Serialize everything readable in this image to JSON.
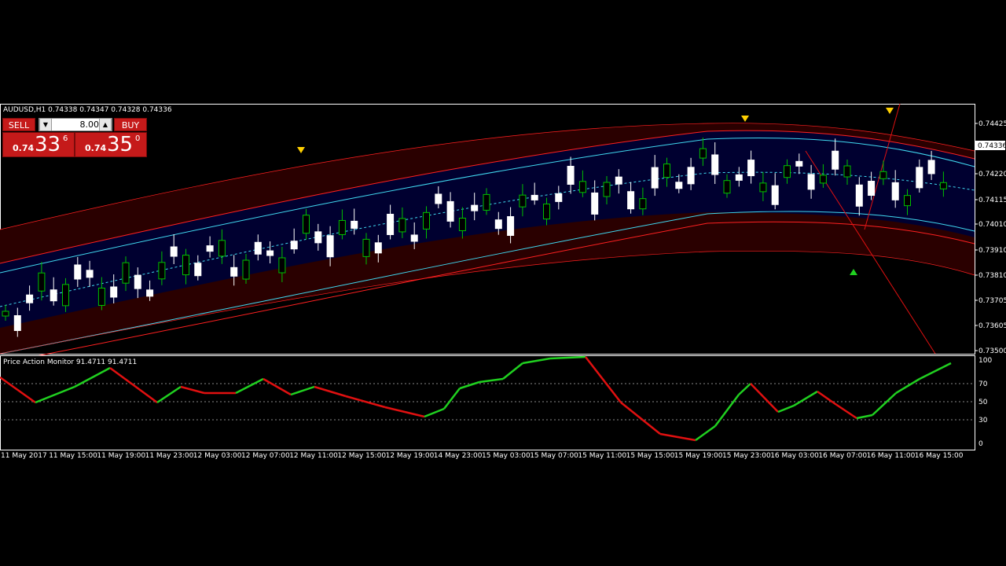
{
  "chart": {
    "symbol_line": "AUDUSD,H1  0.74338 0.74347 0.74328 0.74336",
    "indicator_label": "Price Action Monitor 91.4711 91.4711",
    "price_ticks": [
      "0.74425",
      "0.74336",
      "0.74220",
      "0.74115",
      "0.74010",
      "0.73910",
      "0.73810",
      "0.73705",
      "0.73605",
      "0.73500"
    ],
    "current_price": "0.74336",
    "indicator_ticks": [
      "100",
      "70",
      "50",
      "30",
      "0"
    ],
    "time_labels": [
      "11 May 2017",
      "11 May 15:00",
      "11 May 19:00",
      "11 May 23:00",
      "12 May 03:00",
      "12 May 07:00",
      "12 May 11:00",
      "12 May 15:00",
      "12 May 19:00",
      "14 May 23:00",
      "15 May 03:00",
      "15 May 07:00",
      "15 May 11:00",
      "15 May 15:00",
      "15 May 19:00",
      "15 May 23:00",
      "16 May 03:00",
      "16 May 07:00",
      "16 May 11:00",
      "16 May 15:00"
    ]
  },
  "trade_panel": {
    "sell_label": "SELL",
    "buy_label": "BUY",
    "lot_value": "8.00",
    "bid_prefix": "0.74",
    "bid_big": "33",
    "bid_pip": "6",
    "ask_prefix": "0.74",
    "ask_big": "35",
    "ask_pip": "0"
  },
  "colors": {
    "bull_candle": "#00c000",
    "bear_candle": "#ffffff",
    "band_fill": "#2a0000",
    "inner_band": "#000040",
    "band_line_red": "#ff2020",
    "band_line_cyan": "#40d8f0",
    "indicator_up": "#20d020",
    "indicator_down": "#e01010"
  }
}
